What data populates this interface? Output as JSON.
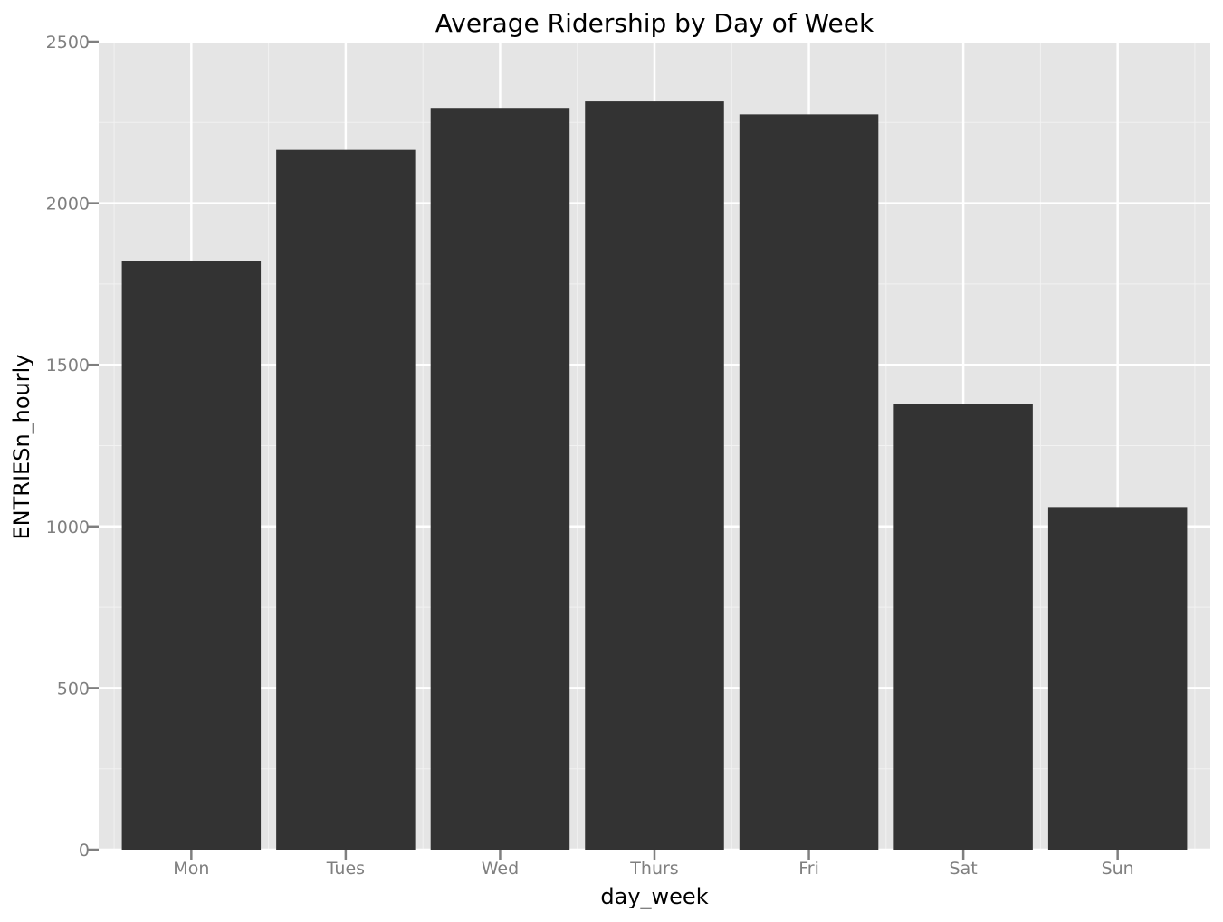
{
  "chart_data": {
    "type": "bar",
    "title": "Average Ridership by Day of Week",
    "xlabel": "day_week",
    "ylabel": "ENTRIESn_hourly",
    "categories": [
      "Mon",
      "Tues",
      "Wed",
      "Thurs",
      "Fri",
      "Sat",
      "Sun"
    ],
    "values": [
      1820,
      2165,
      2295,
      2315,
      2275,
      1380,
      1060
    ],
    "ylim": [
      0,
      2500
    ],
    "yticks": [
      "0",
      "500",
      "1000",
      "1500",
      "2000",
      "2500"
    ],
    "grid": true,
    "legend": "none",
    "colors": {
      "bar": "#333333",
      "panel": "#e5e5e5",
      "grid_major": "#ffffff",
      "grid_minor": "#f2f2f2",
      "tick_text": "#7f7f7f",
      "axis_tick": "#7f7f7f",
      "text": "#000000"
    }
  }
}
